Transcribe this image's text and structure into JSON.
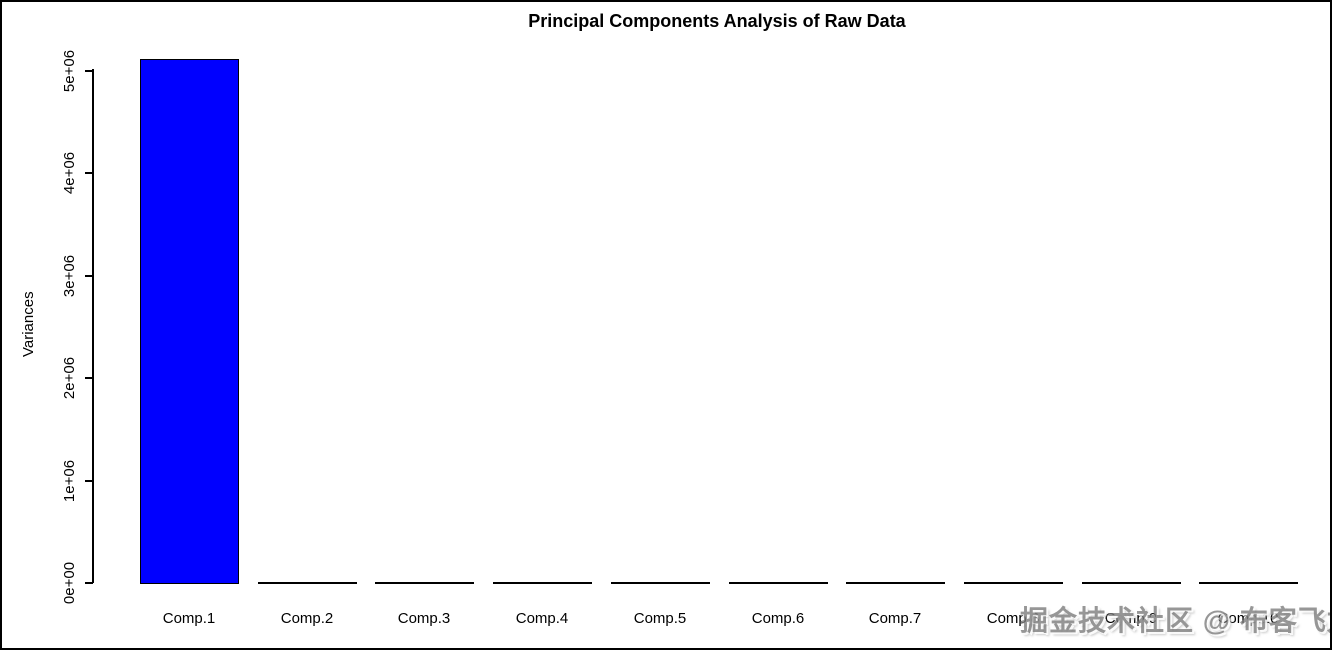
{
  "title": "Principal Components Analysis of Raw Data",
  "watermark_text": "掘金技术社区 @ 布客飞龙",
  "chart_data": {
    "type": "bar",
    "title": "Principal Components Analysis of Raw Data",
    "categories": [
      "Comp.1",
      "Comp.2",
      "Comp.3",
      "Comp.4",
      "Comp.5",
      "Comp.6",
      "Comp.7",
      "Comp.8",
      "Comp.9",
      "Comp.10"
    ],
    "values": [
      5110000,
      0,
      0,
      0,
      0,
      0,
      0,
      0,
      0,
      0
    ],
    "xlabel": "",
    "ylabel": "Variances",
    "ylim": [
      0,
      5110000
    ],
    "y_ticks": [
      {
        "label": "0e+00",
        "value": 0
      },
      {
        "label": "1e+06",
        "value": 1000000
      },
      {
        "label": "2e+06",
        "value": 2000000
      },
      {
        "label": "3e+06",
        "value": 3000000
      },
      {
        "label": "4e+06",
        "value": 4000000
      },
      {
        "label": "5e+06",
        "value": 5000000
      }
    ],
    "grid": false,
    "legend_position": "none",
    "bar_color": "#0000ff",
    "bar_border_color": "#000000"
  }
}
